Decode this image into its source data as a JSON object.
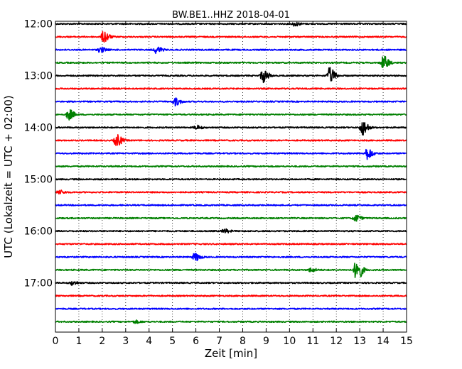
{
  "chart_data": {
    "type": "line",
    "title": "BW.BE1..HHZ 2018-04-01",
    "xlabel": "Zeit  [min]",
    "ylabel": "UTC (Lokalzeit = UTC + 02:00)",
    "xlim": [
      0,
      15
    ],
    "xticks": [
      0,
      1,
      2,
      3,
      4,
      5,
      6,
      7,
      8,
      9,
      10,
      11,
      12,
      13,
      14,
      15
    ],
    "ylim": [
      11.95,
      17.95
    ],
    "yticks": [
      {
        "value": 12.0,
        "label": "12:00"
      },
      {
        "value": 13.0,
        "label": "13:00"
      },
      {
        "value": 14.0,
        "label": "14:00"
      },
      {
        "value": 15.0,
        "label": "15:00"
      },
      {
        "value": 16.0,
        "label": "16:00"
      },
      {
        "value": 17.0,
        "label": "17:00"
      }
    ],
    "grid": "vertical-dotted",
    "trace_colors": [
      "#000000",
      "#ff0000",
      "#0000ff",
      "#008000"
    ],
    "traces": [
      {
        "start": "12:00",
        "y": 12.0,
        "color": "#000000",
        "events": [
          {
            "t": 10.2,
            "amp": 0.3
          }
        ]
      },
      {
        "start": "12:15",
        "y": 12.25,
        "color": "#ff0000",
        "events": [
          {
            "t": 2.05,
            "amp": 0.9
          }
        ]
      },
      {
        "start": "12:30",
        "y": 12.5,
        "color": "#0000ff",
        "events": [
          {
            "t": 1.9,
            "amp": 0.4
          },
          {
            "t": 4.3,
            "amp": 0.5
          }
        ]
      },
      {
        "start": "12:45",
        "y": 12.75,
        "color": "#008000",
        "events": [
          {
            "t": 14.0,
            "amp": 1.1
          }
        ]
      },
      {
        "start": "13:00",
        "y": 13.0,
        "color": "#000000",
        "events": [
          {
            "t": 8.85,
            "amp": 1.0
          },
          {
            "t": 11.7,
            "amp": 1.2
          }
        ]
      },
      {
        "start": "13:15",
        "y": 13.25,
        "color": "#ff0000",
        "events": []
      },
      {
        "start": "13:30",
        "y": 13.5,
        "color": "#0000ff",
        "events": [
          {
            "t": 5.1,
            "amp": 0.6
          }
        ]
      },
      {
        "start": "13:45",
        "y": 13.75,
        "color": "#008000",
        "events": [
          {
            "t": 0.55,
            "amp": 0.8
          }
        ]
      },
      {
        "start": "14:00",
        "y": 14.0,
        "color": "#000000",
        "events": [
          {
            "t": 6.0,
            "amp": 0.3
          },
          {
            "t": 13.1,
            "amp": 1.2
          }
        ]
      },
      {
        "start": "14:15",
        "y": 14.25,
        "color": "#ff0000",
        "events": [
          {
            "t": 2.6,
            "amp": 0.9
          }
        ]
      },
      {
        "start": "14:30",
        "y": 14.5,
        "color": "#0000ff",
        "events": [
          {
            "t": 13.3,
            "amp": 0.9
          }
        ]
      },
      {
        "start": "14:45",
        "y": 14.75,
        "color": "#008000",
        "events": []
      },
      {
        "start": "15:00",
        "y": 15.0,
        "color": "#000000",
        "events": []
      },
      {
        "start": "15:15",
        "y": 15.25,
        "color": "#ff0000",
        "events": [
          {
            "t": 0.15,
            "amp": 0.3
          }
        ]
      },
      {
        "start": "15:30",
        "y": 15.5,
        "color": "#0000ff",
        "events": []
      },
      {
        "start": "15:45",
        "y": 15.75,
        "color": "#008000",
        "events": [
          {
            "t": 12.8,
            "amp": 0.5
          }
        ]
      },
      {
        "start": "16:00",
        "y": 16.0,
        "color": "#000000",
        "events": [
          {
            "t": 7.2,
            "amp": 0.3
          }
        ]
      },
      {
        "start": "16:15",
        "y": 16.25,
        "color": "#ff0000",
        "events": []
      },
      {
        "start": "16:30",
        "y": 16.5,
        "color": "#0000ff",
        "events": [
          {
            "t": 5.95,
            "amp": 0.6
          }
        ]
      },
      {
        "start": "16:45",
        "y": 16.75,
        "color": "#008000",
        "events": [
          {
            "t": 10.9,
            "amp": 0.3
          },
          {
            "t": 12.85,
            "amp": 1.8
          }
        ]
      },
      {
        "start": "17:00",
        "y": 17.0,
        "color": "#000000",
        "events": [
          {
            "t": 0.7,
            "amp": 0.3
          }
        ]
      },
      {
        "start": "17:15",
        "y": 17.25,
        "color": "#ff0000",
        "events": []
      },
      {
        "start": "17:30",
        "y": 17.5,
        "color": "#0000ff",
        "events": []
      },
      {
        "start": "17:45",
        "y": 17.75,
        "color": "#008000",
        "events": [
          {
            "t": 3.4,
            "amp": 0.2
          }
        ]
      }
    ]
  }
}
